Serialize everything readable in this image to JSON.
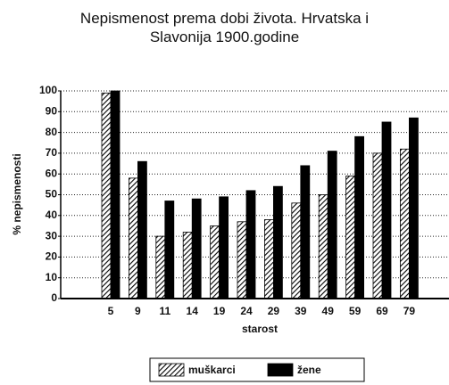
{
  "chart_data": {
    "type": "bar",
    "title": "Nepismenost prema dobi života. Hrvatska i Slavonija 1900.godine",
    "xlabel": "starost",
    "ylabel": "% nepismenosti",
    "categories": [
      "5",
      "9",
      "11",
      "14",
      "19",
      "24",
      "29",
      "39",
      "49",
      "59",
      "69",
      "79"
    ],
    "series": [
      {
        "name": "muškarci",
        "color": "hatched",
        "values": [
          99,
          58,
          30,
          32,
          35,
          37,
          38,
          46,
          50,
          59,
          70,
          72
        ]
      },
      {
        "name": "žene",
        "color": "#000000",
        "values": [
          100,
          66,
          47,
          48,
          49,
          52,
          54,
          64,
          71,
          78,
          85,
          87
        ]
      }
    ],
    "ylim": [
      0,
      100
    ],
    "yticks": [
      0,
      10,
      20,
      30,
      40,
      50,
      60,
      70,
      80,
      90,
      100
    ],
    "grid": true
  }
}
